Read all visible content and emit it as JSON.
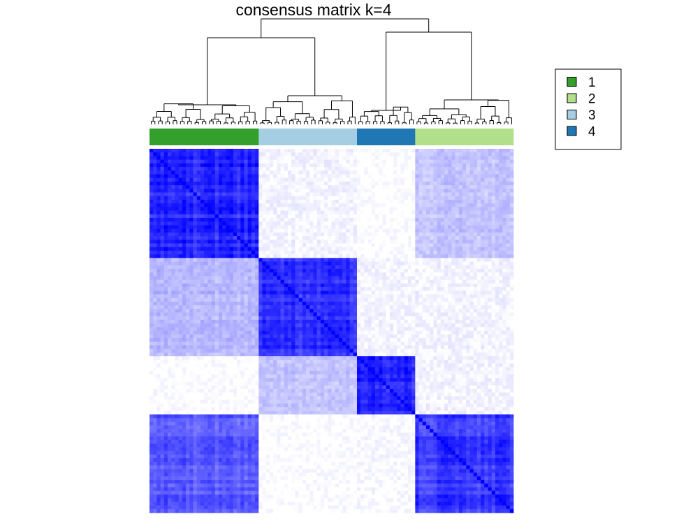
{
  "chart_data": {
    "type": "heatmap",
    "title": "consensus matrix k=4",
    "cluster_order": [
      1,
      3,
      4,
      2
    ],
    "cluster_sizes": [
      30,
      27,
      16,
      27
    ],
    "annotation_colors": {
      "1": "#33a02c",
      "2": "#b2df8a",
      "3": "#a6cee3",
      "4": "#1f78b4"
    },
    "heat_color_low": "#ffffff",
    "heat_color_high": "#0000ff",
    "value_range": [
      0,
      1
    ],
    "block_consensus": [
      [
        0.9,
        0.05,
        0.0,
        0.25
      ],
      [
        0.3,
        0.9,
        0.05,
        0.05
      ],
      [
        0.0,
        0.25,
        0.92,
        0.05
      ],
      [
        0.7,
        0.0,
        0.02,
        0.85
      ]
    ],
    "legend": {
      "position": "top-right",
      "entries": [
        {
          "label": "1",
          "color": "#33a02c"
        },
        {
          "label": "2",
          "color": "#b2df8a"
        },
        {
          "label": "3",
          "color": "#a6cee3"
        },
        {
          "label": "4",
          "color": "#1f78b4"
        }
      ]
    }
  }
}
